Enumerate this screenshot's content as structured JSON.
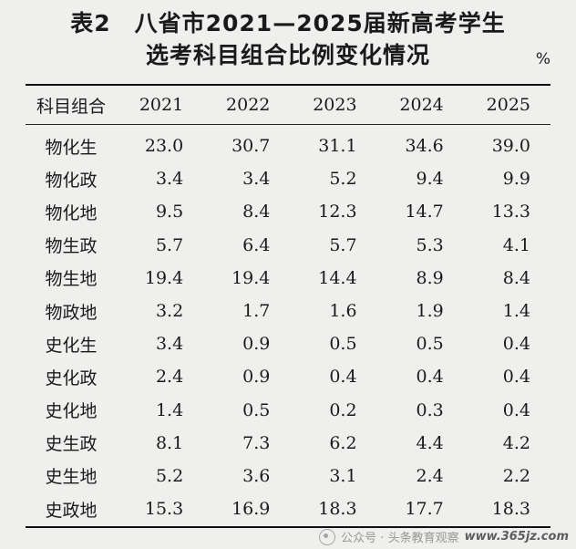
{
  "title": {
    "line1": "表2　八省市2021—2025届新高考学生",
    "line2": "选考科目组合比例变化情况",
    "unit": "%"
  },
  "table": {
    "header": [
      "科目组合",
      "2021",
      "2022",
      "2023",
      "2024",
      "2025"
    ],
    "rows": [
      [
        "物化生",
        "23.0",
        "30.7",
        "31.1",
        "34.6",
        "39.0"
      ],
      [
        "物化政",
        "3.4",
        "3.4",
        "5.2",
        "9.4",
        "9.9"
      ],
      [
        "物化地",
        "9.5",
        "8.4",
        "12.3",
        "14.7",
        "13.3"
      ],
      [
        "物生政",
        "5.7",
        "6.4",
        "5.7",
        "5.3",
        "4.1"
      ],
      [
        "物生地",
        "19.4",
        "19.4",
        "14.4",
        "8.9",
        "8.4"
      ],
      [
        "物政地",
        "3.2",
        "1.7",
        "1.6",
        "1.9",
        "1.4"
      ],
      [
        "史化生",
        "3.4",
        "0.9",
        "0.5",
        "0.5",
        "0.4"
      ],
      [
        "史化政",
        "2.4",
        "0.9",
        "0.4",
        "0.4",
        "0.4"
      ],
      [
        "史化地",
        "1.4",
        "0.5",
        "0.2",
        "0.3",
        "0.4"
      ],
      [
        "史生政",
        "8.1",
        "7.3",
        "6.2",
        "4.4",
        "4.2"
      ],
      [
        "史生地",
        "5.2",
        "3.6",
        "3.1",
        "2.4",
        "2.2"
      ],
      [
        "史政地",
        "15.3",
        "16.9",
        "18.3",
        "17.7",
        "18.3"
      ]
    ]
  },
  "watermark": {
    "channel": "公众号 · 头条教育观察",
    "site": "www.365jz.com",
    "icon": "wechat-channel-icon"
  }
}
